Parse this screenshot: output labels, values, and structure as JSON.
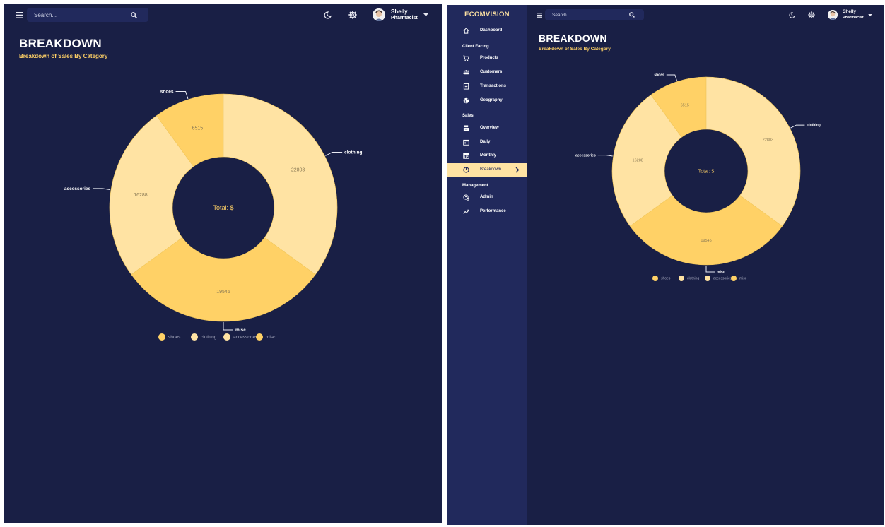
{
  "colors": {
    "background": "#191f45",
    "sidebar": "#21295c",
    "accent": "#ffd166",
    "accent_light": "#ffe3a3",
    "slice_dark": "#ffd166",
    "slice_light": "#ffe3a3"
  },
  "topbar": {
    "search_placeholder": "Search...",
    "user_name": "Shelly",
    "user_role": "Pharmacist"
  },
  "page": {
    "title": "BREAKDOWN",
    "subtitle": "Breakdown of Sales By Category"
  },
  "chart_data": {
    "type": "pie",
    "center_label": "Total: $",
    "categories": [
      "shoes",
      "clothing",
      "misc",
      "accessories"
    ],
    "values": [
      6515,
      22803,
      19545,
      16288
    ],
    "legend_order": [
      "shoes",
      "clothing",
      "accessories",
      "misc"
    ],
    "legend_placement": "bottom",
    "series_colors": {
      "shoes": "#ffd166",
      "clothing": "#ffe3a3",
      "misc": "#ffd166",
      "accessories": "#ffe3a3"
    }
  },
  "sidebar": {
    "brand": "ECOMVISION",
    "entries": [
      {
        "type": "item",
        "label": "Dashboard",
        "icon": "home-icon"
      },
      {
        "type": "section",
        "label": "Client Facing"
      },
      {
        "type": "item",
        "label": "Products",
        "icon": "shopping-cart-icon"
      },
      {
        "type": "item",
        "label": "Customers",
        "icon": "groups-icon"
      },
      {
        "type": "item",
        "label": "Transactions",
        "icon": "receipt-icon"
      },
      {
        "type": "item",
        "label": "Geography",
        "icon": "globe-icon"
      },
      {
        "type": "section",
        "label": "Sales"
      },
      {
        "type": "item",
        "label": "Overview",
        "icon": "point-of-sale-icon"
      },
      {
        "type": "item",
        "label": "Daily",
        "icon": "today-icon"
      },
      {
        "type": "item",
        "label": "Monthly",
        "icon": "calendar-month-icon"
      },
      {
        "type": "item",
        "label": "Breakdown",
        "icon": "pie-chart-icon",
        "active": true
      },
      {
        "type": "section",
        "label": "Management"
      },
      {
        "type": "item",
        "label": "Admin",
        "icon": "admin-icon"
      },
      {
        "type": "item",
        "label": "Performance",
        "icon": "trending-up-icon"
      }
    ]
  }
}
